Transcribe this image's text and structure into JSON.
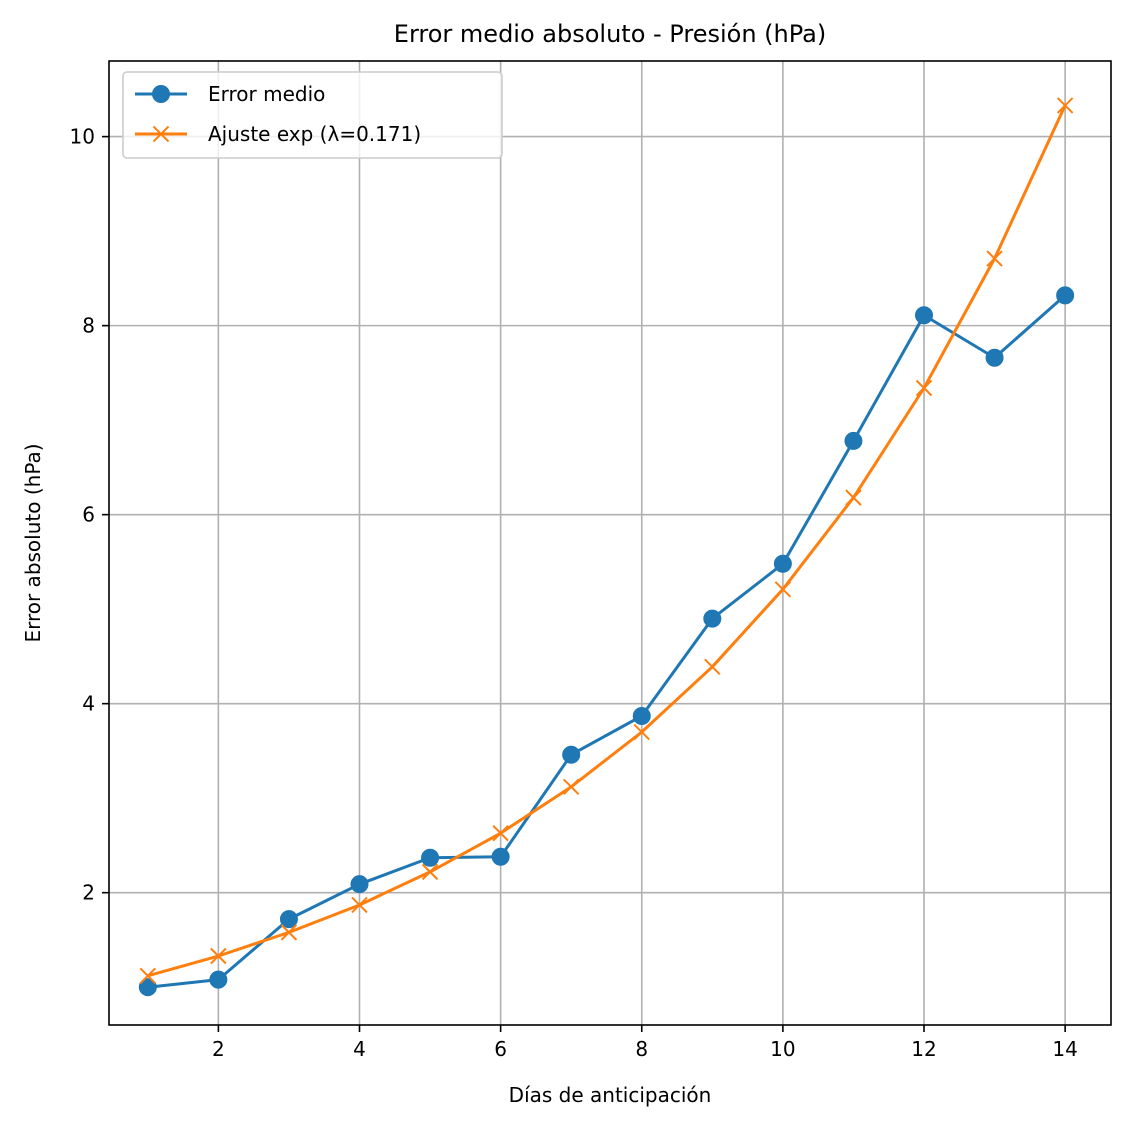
{
  "chart_data": {
    "type": "line",
    "title": "Error medio absoluto - Presión (hPa)",
    "xlabel": "Días de anticipación",
    "ylabel": "Error absoluto (hPa)",
    "xlim": [
      0.45,
      14.65
    ],
    "ylim": [
      0.6,
      10.8
    ],
    "xticks": [
      2,
      4,
      6,
      8,
      10,
      12,
      14
    ],
    "yticks": [
      2,
      4,
      6,
      8,
      10
    ],
    "grid": true,
    "legend_position": "upper-left",
    "x": [
      1,
      2,
      3,
      4,
      5,
      6,
      7,
      8,
      9,
      10,
      11,
      12,
      13,
      14
    ],
    "series": [
      {
        "name": "Error medio",
        "marker": "circle",
        "color": "#1f77b4",
        "values": [
          1.0,
          1.08,
          1.72,
          2.09,
          2.37,
          2.38,
          3.46,
          3.87,
          4.9,
          5.48,
          6.78,
          8.11,
          7.66,
          8.32
        ]
      },
      {
        "name": "Ajuste exp (λ=0.171)",
        "marker": "x",
        "color": "#ff7f0e",
        "values": [
          1.12,
          1.33,
          1.58,
          1.87,
          2.22,
          2.63,
          3.12,
          3.7,
          4.39,
          5.21,
          6.18,
          7.34,
          8.71,
          10.33
        ]
      }
    ]
  }
}
